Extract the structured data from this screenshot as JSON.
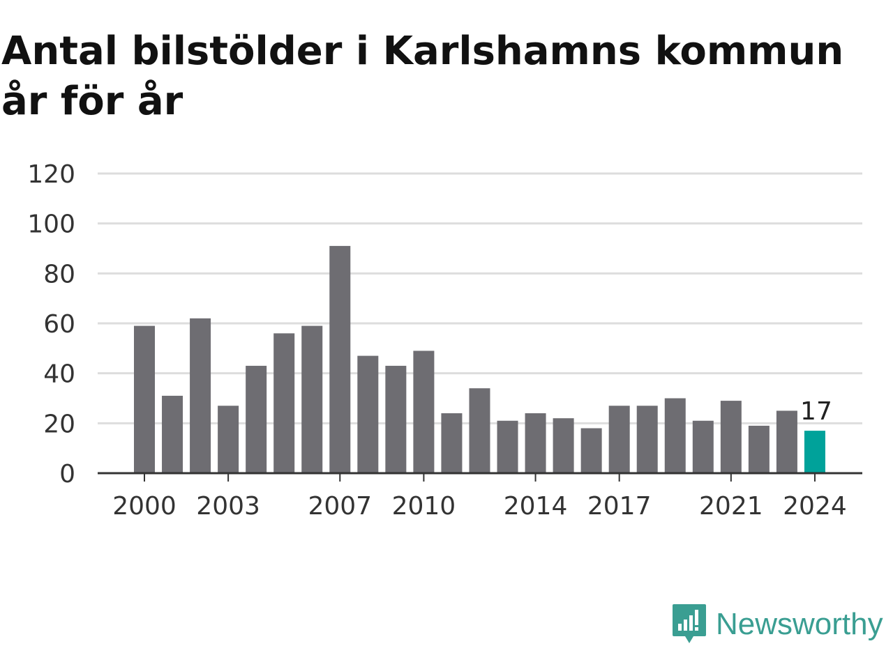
{
  "title": "Antal bilstölder i Karlshamns kommun år för år",
  "brand": {
    "name": "Newsworthy",
    "icon": "newsworthy-logo-icon",
    "color": "#3a9e92"
  },
  "chart_data": {
    "type": "bar",
    "title": "Antal bilstölder i Karlshamns kommun år för år",
    "xlabel": "",
    "ylabel": "",
    "ylim": [
      0,
      120
    ],
    "yticks": [
      0,
      20,
      40,
      60,
      80,
      100,
      120
    ],
    "xtick_labels": [
      "2000",
      "2003",
      "2007",
      "2010",
      "2014",
      "2017",
      "2021",
      "2024"
    ],
    "grid": true,
    "categories": [
      "2000",
      "2001",
      "2002",
      "2003",
      "2004",
      "2005",
      "2006",
      "2007",
      "2008",
      "2009",
      "2010",
      "2011",
      "2012",
      "2013",
      "2014",
      "2015",
      "2016",
      "2017",
      "2018",
      "2019",
      "2020",
      "2021",
      "2022",
      "2023",
      "2024"
    ],
    "values": [
      59,
      31,
      62,
      27,
      43,
      56,
      59,
      91,
      47,
      43,
      49,
      24,
      34,
      21,
      24,
      22,
      18,
      27,
      27,
      30,
      21,
      29,
      19,
      25,
      17
    ],
    "bar_color": "#6e6d72",
    "highlight": {
      "category": "2024",
      "color": "#00a29a",
      "label": "17"
    }
  }
}
